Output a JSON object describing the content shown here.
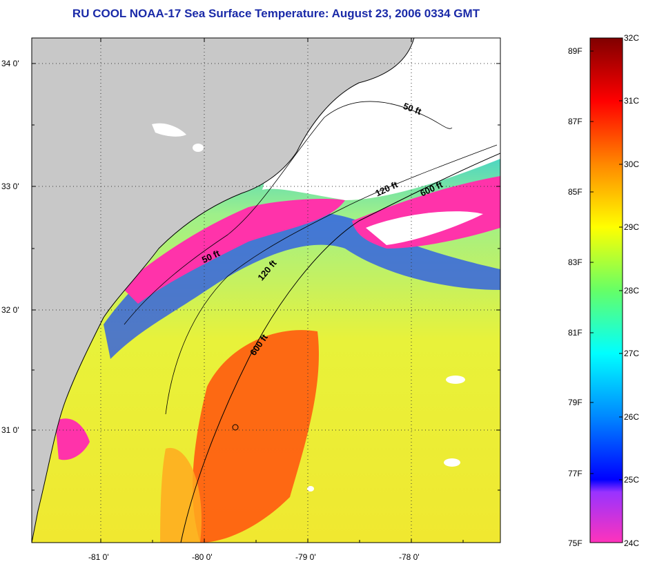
{
  "title": "RU COOL  NOAA-17  Sea Surface Temperature:  August 23, 2006 0334 GMT",
  "map": {
    "lat_labels": [
      "34 0'",
      "33 0'",
      "32 0'",
      "31 0'"
    ],
    "lon_labels": [
      "-81 0'",
      "-80 0'",
      "-79 0'",
      "-78 0'"
    ],
    "contours": [
      "50 ft",
      "50 ft",
      "120 ft",
      "120 ft",
      "600 ft",
      "600 ft"
    ]
  },
  "colorbar": {
    "fahrenheit": [
      "89F",
      "87F",
      "85F",
      "83F",
      "81F",
      "79F",
      "77F",
      "75F"
    ],
    "celsius": [
      "32C",
      "31C",
      "30C",
      "29C",
      "28C",
      "27C",
      "26C",
      "25C",
      "24C"
    ]
  },
  "colors": {
    "land": "#c8c8c8",
    "cloud": "#ffffff",
    "title": "#1a2aa8",
    "cold": "#ff33aa",
    "warm": "#ff4a10"
  }
}
